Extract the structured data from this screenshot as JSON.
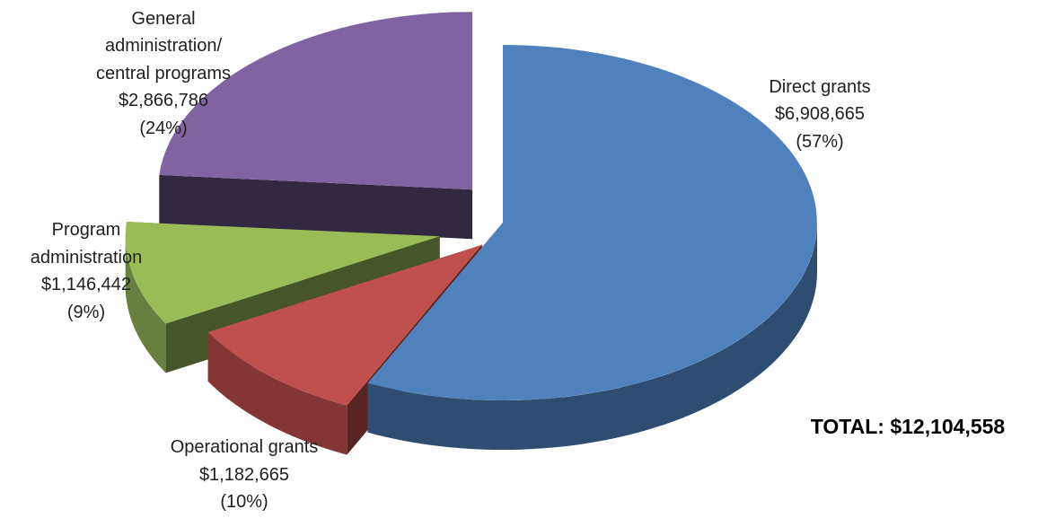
{
  "chart_data": {
    "type": "pie",
    "style": "3d-exploded",
    "slices": [
      {
        "label_lines": [
          "Direct grants"
        ],
        "amount": "$6,908,665",
        "percent": "(57%)",
        "value": 6908665,
        "color": "#4f81bd"
      },
      {
        "label_lines": [
          "Operational grants"
        ],
        "amount": "$1,182,665",
        "percent": "(10%)",
        "value": 1182665,
        "color": "#c0504d"
      },
      {
        "label_lines": [
          "Program",
          "administration"
        ],
        "amount": "$1,146,442",
        "percent": "(9%)",
        "value": 1146442,
        "color": "#9bbb59"
      },
      {
        "label_lines": [
          "General",
          "administration/",
          "central programs"
        ],
        "amount": "$2,866,786",
        "percent": "(24%)",
        "value": 2866786,
        "color": "#8064a2"
      }
    ],
    "total_text": "TOTAL: $12,104,558",
    "legend": "none"
  }
}
